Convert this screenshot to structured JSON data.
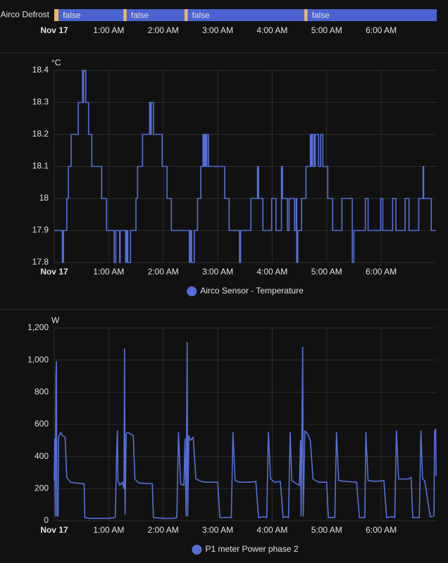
{
  "chart_data": [
    {
      "type": "timeline",
      "label": "Airco Defrost",
      "xlim": [
        0,
        7.02
      ],
      "xticks": [
        {
          "value": 0,
          "label": "Nov 17"
        },
        {
          "value": 1,
          "label": "1:00 AM"
        },
        {
          "value": 2,
          "label": "2:00 AM"
        },
        {
          "value": 3,
          "label": "3:00 AM"
        },
        {
          "value": 4,
          "label": "4:00 AM"
        },
        {
          "value": 5,
          "label": "5:00 AM"
        },
        {
          "value": 6,
          "label": "6:00 AM"
        }
      ],
      "segments": [
        {
          "start": 0,
          "end": 0.08,
          "color": "#e8b86d"
        },
        {
          "start": 0.08,
          "end": 1.27,
          "label": "false",
          "color": "#4b62d0"
        },
        {
          "start": 1.27,
          "end": 1.33,
          "color": "#e8b86d"
        },
        {
          "start": 1.33,
          "end": 2.39,
          "label": "false",
          "color": "#4b62d0"
        },
        {
          "start": 2.39,
          "end": 2.45,
          "color": "#e8b86d"
        },
        {
          "start": 2.45,
          "end": 4.59,
          "label": "false",
          "color": "#4b62d0"
        },
        {
          "start": 4.59,
          "end": 4.65,
          "color": "#e8b86d"
        },
        {
          "start": 4.65,
          "end": 7.02,
          "label": "false",
          "color": "#4b62d0"
        }
      ]
    },
    {
      "type": "line",
      "step": true,
      "unit": "°C",
      "grid": true,
      "xlim": [
        0,
        7.02
      ],
      "xticks": [
        {
          "value": 0,
          "label": "Nov 17"
        },
        {
          "value": 1,
          "label": "1:00 AM"
        },
        {
          "value": 2,
          "label": "2:00 AM"
        },
        {
          "value": 3,
          "label": "3:00 AM"
        },
        {
          "value": 4,
          "label": "4:00 AM"
        },
        {
          "value": 5,
          "label": "5:00 AM"
        },
        {
          "value": 6,
          "label": "6:00 AM"
        }
      ],
      "ylim": [
        17.8,
        18.4
      ],
      "yticks": [
        17.8,
        17.9,
        18,
        18.1,
        18.2,
        18.3,
        18.4
      ],
      "x": [
        0,
        0.15,
        0.17,
        0.23,
        0.26,
        0.31,
        0.44,
        0.52,
        0.53,
        0.54,
        0.58,
        0.63,
        0.69,
        0.87,
        0.96,
        1.1,
        1.13,
        1.2,
        1.21,
        1.31,
        1.33,
        1.35,
        1.4,
        1.5,
        1.53,
        1.62,
        1.75,
        1.77,
        1.78,
        1.82,
        1.98,
        2.07,
        2.15,
        2.48,
        2.5,
        2.52,
        2.57,
        2.63,
        2.69,
        2.73,
        2.74,
        2.76,
        2.78,
        2.8,
        2.83,
        3.13,
        3.21,
        3.4,
        3.42,
        3.61,
        3.73,
        3.75,
        3.83,
        3.99,
        4.07,
        4.17,
        4.19,
        4.28,
        4.31,
        4.41,
        4.44,
        4.45,
        4.47,
        4.54,
        4.62,
        4.7,
        4.72,
        4.74,
        4.77,
        4.79,
        4.85,
        4.89,
        4.93,
        5.02,
        5.11,
        5.28,
        5.47,
        5.5,
        5.71,
        5.76,
        5.99,
        6.03,
        6.21,
        6.27,
        6.44,
        6.51,
        6.69,
        6.77,
        6.78,
        6.92,
        7.0
      ],
      "series": [
        {
          "name": "Airco Sensor - Temperature",
          "color": "#5470d6",
          "values": [
            17.9,
            17.8,
            17.9,
            18.0,
            18.1,
            18.2,
            18.3,
            18.4,
            18.3,
            18.4,
            18.3,
            18.2,
            18.1,
            18.0,
            17.9,
            17.8,
            17.9,
            17.8,
            17.9,
            17.8,
            17.9,
            17.8,
            17.9,
            18.0,
            18.1,
            18.2,
            18.3,
            18.2,
            18.3,
            18.2,
            18.1,
            18.0,
            17.9,
            17.8,
            17.9,
            17.8,
            17.9,
            18.0,
            18.1,
            18.2,
            18.1,
            18.2,
            18.1,
            18.2,
            18.1,
            18.0,
            17.9,
            17.8,
            17.9,
            18.0,
            18.1,
            18.0,
            17.9,
            18.0,
            17.9,
            18.1,
            18.0,
            17.9,
            18.0,
            17.9,
            18.0,
            17.8,
            17.9,
            18.0,
            18.1,
            18.2,
            18.1,
            18.2,
            18.1,
            18.2,
            18.1,
            18.2,
            18.1,
            18.0,
            17.9,
            18.0,
            17.8,
            17.9,
            18.0,
            17.9,
            18.0,
            17.9,
            18.0,
            17.9,
            18.0,
            17.9,
            18.0,
            18.1,
            18.0,
            17.9,
            17.9
          ]
        }
      ]
    },
    {
      "type": "line",
      "unit": "W",
      "grid": true,
      "xlim": [
        0,
        7.02
      ],
      "xticks": [
        {
          "value": 0,
          "label": "Nov 17"
        },
        {
          "value": 1,
          "label": "1:00 AM"
        },
        {
          "value": 2,
          "label": "2:00 AM"
        },
        {
          "value": 3,
          "label": "3:00 AM"
        },
        {
          "value": 4,
          "label": "4:00 AM"
        },
        {
          "value": 5,
          "label": "5:00 AM"
        },
        {
          "value": 6,
          "label": "6:00 AM"
        }
      ],
      "ylim": [
        0,
        1200
      ],
      "yticks": [
        0,
        200,
        400,
        600,
        800,
        {
          "value": 1000,
          "label": "1,000"
        },
        {
          "value": 1200,
          "label": "1,200"
        }
      ],
      "x": [
        0,
        0.01,
        0.02,
        0.03,
        0.04,
        0.05,
        0.07,
        0.08,
        0.12,
        0.15,
        0.2,
        0.23,
        0.3,
        0.4,
        0.55,
        0.56,
        0.65,
        1.0,
        1.1,
        1.12,
        1.15,
        1.16,
        1.17,
        1.2,
        1.25,
        1.28,
        1.29,
        1.3,
        1.32,
        1.35,
        1.45,
        1.48,
        1.55,
        1.8,
        1.82,
        2.0,
        2.2,
        2.25,
        2.28,
        2.32,
        2.38,
        2.4,
        2.42,
        2.44,
        2.45,
        2.47,
        2.5,
        2.55,
        2.6,
        2.7,
        2.8,
        3.0,
        3.04,
        3.2,
        3.25,
        3.28,
        3.32,
        3.4,
        3.6,
        3.7,
        3.75,
        3.85,
        3.9,
        3.93,
        3.97,
        4.05,
        4.15,
        4.2,
        4.25,
        4.3,
        4.33,
        4.36,
        4.45,
        4.5,
        4.52,
        4.53,
        4.56,
        4.57,
        4.6,
        4.65,
        4.7,
        4.75,
        4.85,
        5.0,
        5.03,
        5.15,
        5.18,
        5.22,
        5.35,
        5.55,
        5.6,
        5.7,
        5.72,
        5.76,
        5.9,
        6.05,
        6.1,
        6.2,
        6.25,
        6.28,
        6.32,
        6.5,
        6.55,
        6.58,
        6.7,
        6.73,
        6.76,
        6.8,
        6.9,
        6.97,
        6.98,
        7.0,
        7.01
      ],
      "series": [
        {
          "name": "P1 meter Power phase 2",
          "color": "#5470d6",
          "values": [
            250,
            510,
            30,
            900,
            990,
            30,
            30,
            520,
            550,
            530,
            520,
            270,
            240,
            235,
            230,
            20,
            15,
            15,
            20,
            20,
            480,
            560,
            250,
            220,
            240,
            200,
            1070,
            40,
            540,
            550,
            530,
            260,
            235,
            230,
            20,
            15,
            15,
            20,
            550,
            230,
            220,
            510,
            30,
            1110,
            30,
            530,
            500,
            520,
            260,
            245,
            240,
            240,
            20,
            20,
            20,
            550,
            250,
            240,
            240,
            245,
            20,
            25,
            20,
            550,
            260,
            240,
            245,
            20,
            25,
            20,
            550,
            250,
            230,
            220,
            500,
            30,
            1080,
            30,
            560,
            540,
            500,
            260,
            240,
            240,
            20,
            20,
            550,
            250,
            245,
            240,
            20,
            20,
            550,
            250,
            245,
            250,
            20,
            25,
            20,
            560,
            260,
            260,
            270,
            20,
            20,
            560,
            260,
            250,
            25,
            30,
            560,
            570,
            280
          ]
        }
      ]
    }
  ]
}
